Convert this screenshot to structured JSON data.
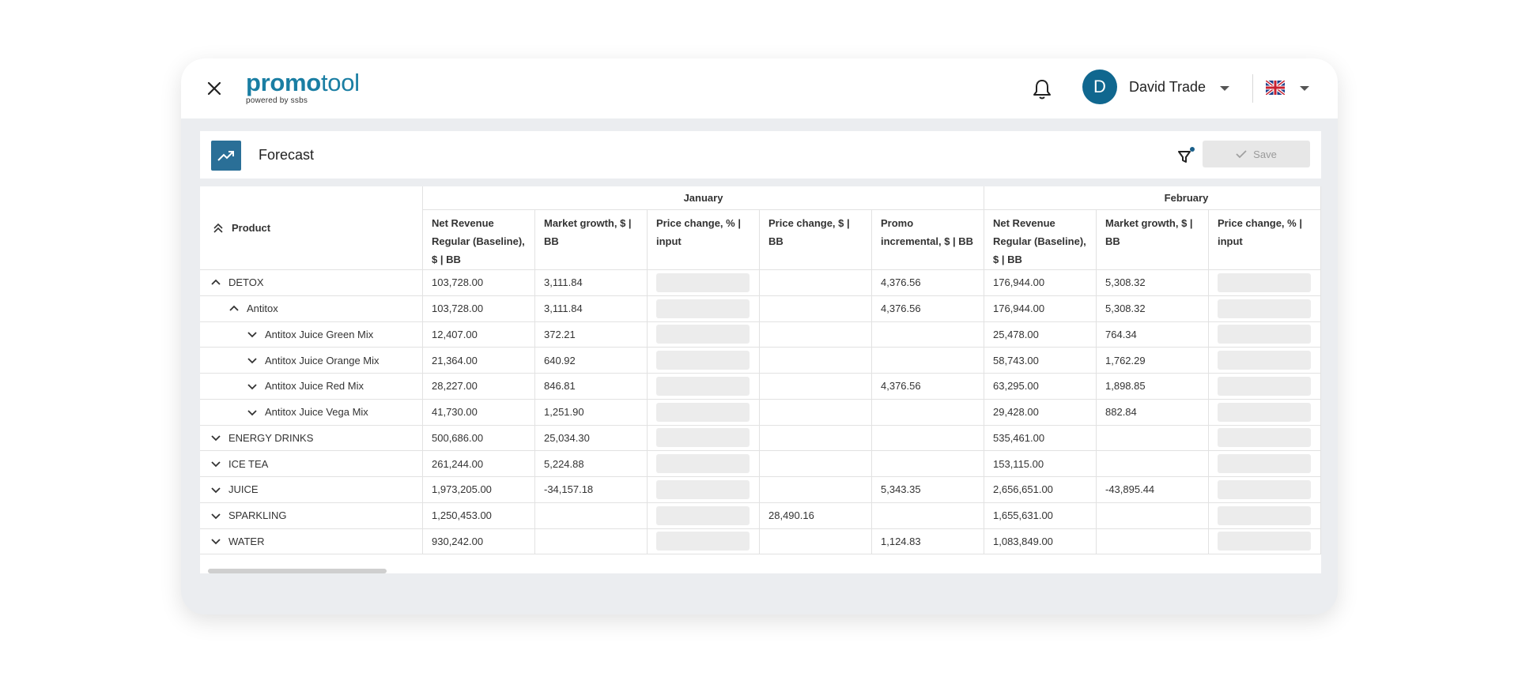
{
  "app": {
    "logo_bold": "promo",
    "logo_light": "tool",
    "logo_sub": "powered by ssbs",
    "user_initial": "D",
    "user_name": "David Trade"
  },
  "panel": {
    "title": "Forecast",
    "save_label": "Save"
  },
  "table": {
    "product_header": "Product",
    "months": [
      "January",
      "February"
    ],
    "columns": [
      "Net Revenue Regular (Baseline), $ | BB",
      "Market growth, $ | BB",
      "Price change, % | input",
      "Price change, $ | BB",
      "Promo incremental, $ | BB",
      "Net Revenue Regular (Baseline), $ | BB",
      "Market growth, $ | BB",
      "Price change, % | input"
    ],
    "rows": [
      {
        "product": "DETOX",
        "level": 0,
        "expanded": true,
        "vals": [
          "103,728.00",
          "3,111.84",
          "",
          "",
          "4,376.56",
          "176,944.00",
          "5,308.32",
          ""
        ]
      },
      {
        "product": "Antitox",
        "level": 1,
        "expanded": true,
        "vals": [
          "103,728.00",
          "3,111.84",
          "",
          "",
          "4,376.56",
          "176,944.00",
          "5,308.32",
          ""
        ]
      },
      {
        "product": "Antitox Juice Green Mix",
        "level": 2,
        "expanded": false,
        "vals": [
          "12,407.00",
          "372.21",
          "",
          "",
          "",
          "25,478.00",
          "764.34",
          ""
        ]
      },
      {
        "product": "Antitox Juice Orange Mix",
        "level": 2,
        "expanded": false,
        "vals": [
          "21,364.00",
          "640.92",
          "",
          "",
          "",
          "58,743.00",
          "1,762.29",
          ""
        ]
      },
      {
        "product": "Antitox Juice Red Mix",
        "level": 2,
        "expanded": false,
        "vals": [
          "28,227.00",
          "846.81",
          "",
          "",
          "4,376.56",
          "63,295.00",
          "1,898.85",
          ""
        ]
      },
      {
        "product": "Antitox Juice Vega Mix",
        "level": 2,
        "expanded": false,
        "vals": [
          "41,730.00",
          "1,251.90",
          "",
          "",
          "",
          "29,428.00",
          "882.84",
          ""
        ]
      },
      {
        "product": "ENERGY DRINKS",
        "level": 0,
        "expanded": false,
        "vals": [
          "500,686.00",
          "25,034.30",
          "",
          "",
          "",
          "535,461.00",
          "",
          ""
        ]
      },
      {
        "product": "ICE TEA",
        "level": 0,
        "expanded": false,
        "vals": [
          "261,244.00",
          "5,224.88",
          "",
          "",
          "",
          "153,115.00",
          "",
          ""
        ]
      },
      {
        "product": "JUICE",
        "level": 0,
        "expanded": false,
        "vals": [
          "1,973,205.00",
          "-34,157.18",
          "",
          "",
          "5,343.35",
          "2,656,651.00",
          "-43,895.44",
          ""
        ]
      },
      {
        "product": "SPARKLING",
        "level": 0,
        "expanded": false,
        "vals": [
          "1,250,453.00",
          "",
          "",
          "28,490.16",
          "",
          "1,655,631.00",
          "",
          ""
        ]
      },
      {
        "product": "WATER",
        "level": 0,
        "expanded": false,
        "vals": [
          "930,242.00",
          "",
          "",
          "",
          "1,124.83",
          "1,083,849.00",
          "",
          ""
        ]
      }
    ]
  }
}
